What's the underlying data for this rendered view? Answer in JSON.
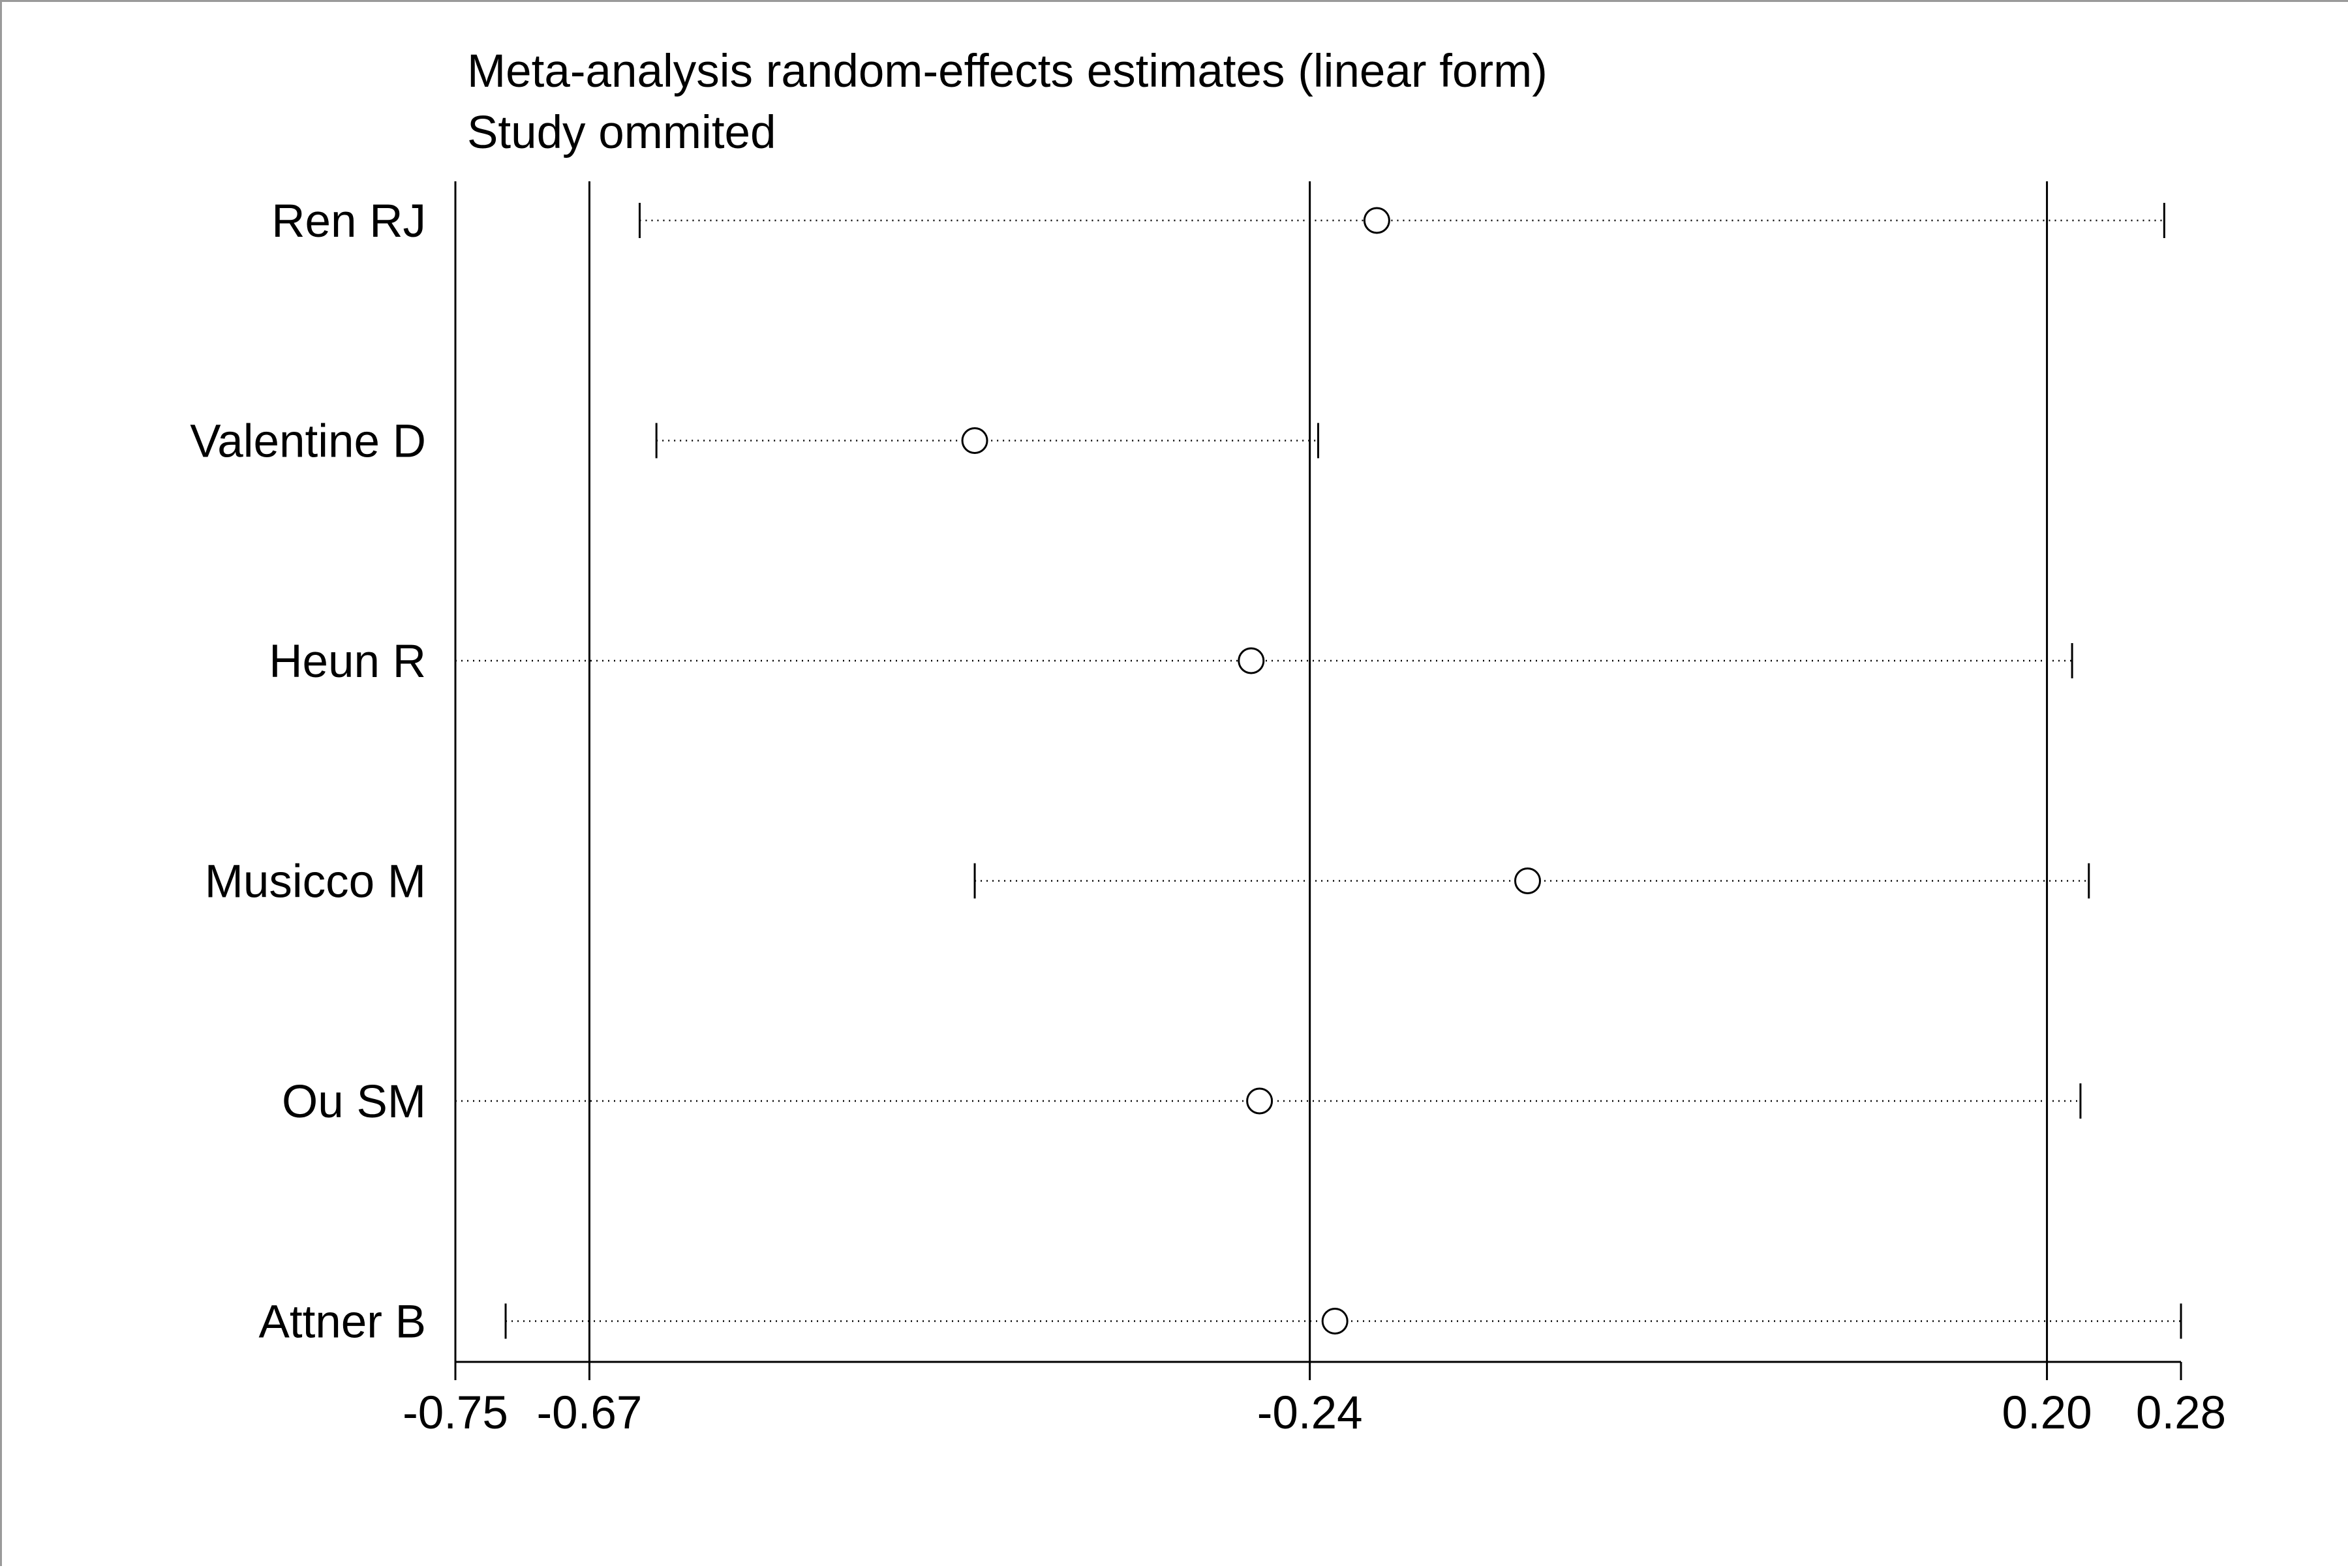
{
  "chart_data": {
    "type": "forest",
    "title_lines": [
      "Meta-analysis random-effects estimates (linear form)",
      "Study ommited"
    ],
    "xlim": [
      -0.75,
      0.28
    ],
    "reference_lines": [
      -0.67,
      -0.24,
      0.2
    ],
    "ticks": [
      {
        "value": -0.75,
        "label": "-0.75"
      },
      {
        "value": -0.67,
        "label": "-0.67"
      },
      {
        "value": -0.24,
        "label": "-0.24"
      },
      {
        "value": 0.2,
        "label": "0.20"
      },
      {
        "value": 0.28,
        "label": "0.28"
      }
    ],
    "studies": [
      {
        "name": "Ren RJ",
        "estimate": -0.2,
        "lower": -0.64,
        "upper": 0.27
      },
      {
        "name": "Valentine D",
        "estimate": -0.44,
        "lower": -0.63,
        "upper": -0.235
      },
      {
        "name": "Heun R",
        "estimate": -0.275,
        "lower": -0.75,
        "upper": 0.215
      },
      {
        "name": "Musicco M",
        "estimate": -0.11,
        "lower": -0.44,
        "upper": 0.225
      },
      {
        "name": "Ou SM",
        "estimate": -0.27,
        "lower": -0.75,
        "upper": 0.22
      },
      {
        "name": "Attner B",
        "estimate": -0.225,
        "lower": -0.72,
        "upper": 0.28
      }
    ]
  }
}
